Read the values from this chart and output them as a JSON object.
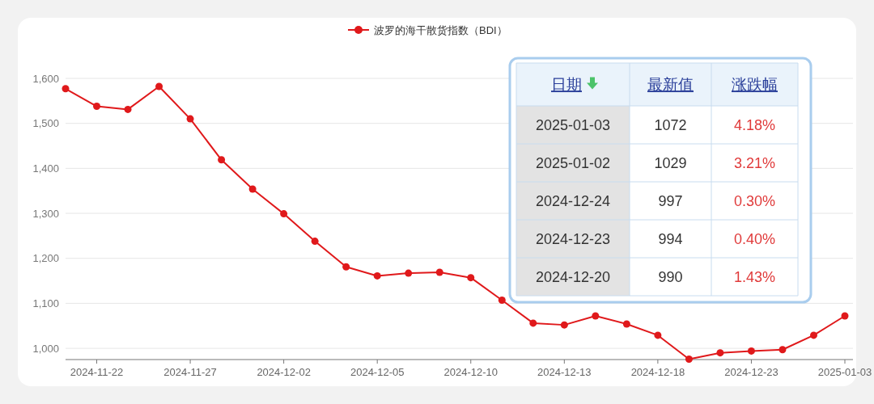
{
  "chart_data": [
    {
      "type": "line",
      "categories": [
        null,
        "2024-11-22",
        null,
        null,
        "2024-11-27",
        null,
        null,
        "2024-12-02",
        null,
        null,
        "2024-12-05",
        null,
        null,
        "2024-12-10",
        null,
        null,
        "2024-12-13",
        null,
        null,
        "2024-12-18",
        null,
        null,
        "2024-12-23",
        null,
        null,
        "2025-01-03"
      ],
      "series": [
        {
          "name": "波罗的海干散货指数（BDI）",
          "color": "#e0191b",
          "values": [
            1577,
            1538,
            1531,
            1582,
            1510,
            1419,
            1354,
            1299,
            1238,
            1181,
            1161,
            1167,
            1169,
            1157,
            1107,
            1056,
            1052,
            1072,
            1054,
            1029,
            976,
            990,
            994,
            997,
            1029,
            1072
          ]
        }
      ],
      "ylim": [
        975,
        1600
      ],
      "yticks": [
        {
          "value": 1000,
          "label": "1,000"
        },
        {
          "value": 1100,
          "label": "1,100"
        },
        {
          "value": 1200,
          "label": "1,200"
        },
        {
          "value": 1300,
          "label": "1,300"
        },
        {
          "value": 1400,
          "label": "1,400"
        },
        {
          "value": 1500,
          "label": "1,500"
        },
        {
          "value": 1600,
          "label": "1,600"
        }
      ],
      "grid": "y",
      "legend": "top",
      "marker": "circle",
      "line_style": "solid"
    },
    {
      "type": "other",
      "annotations": [
        "日期",
        "最新值",
        "涨跌幅",
        "2025-01-03",
        "1072",
        "4.18%",
        "2025-01-02",
        "1029",
        "3.21%",
        "2024-12-24",
        "997",
        "0.30%",
        "2024-12-23",
        "994",
        "0.40%",
        "2024-12-20",
        "990",
        "1.43%"
      ]
    }
  ]
}
